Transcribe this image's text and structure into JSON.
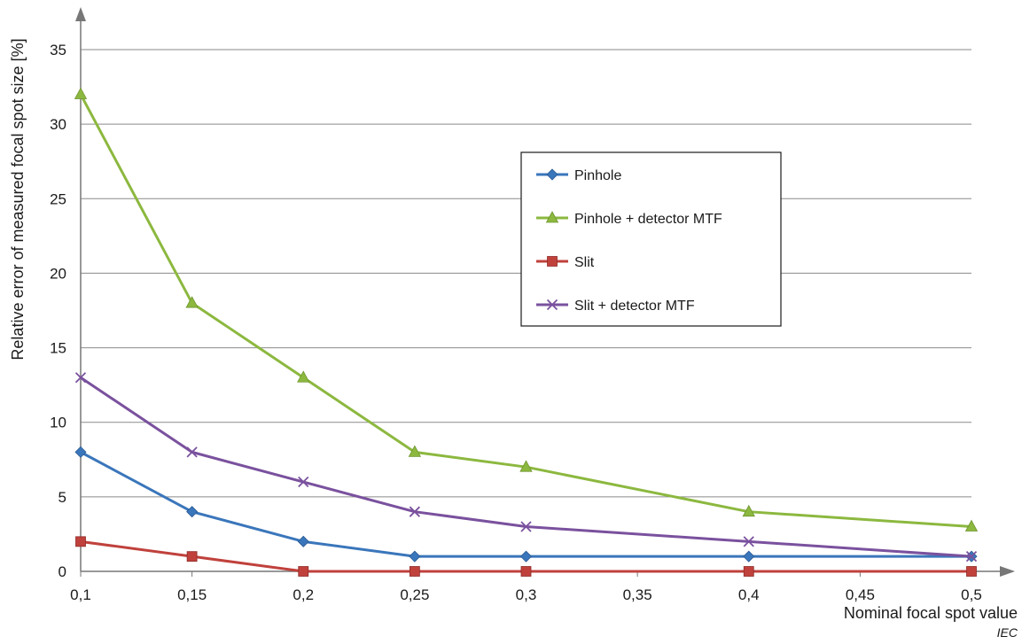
{
  "chart_data": {
    "type": "line",
    "title": "",
    "xlabel": "Nominal focal spot value",
    "ylabel": "Relative error of measured focal spot size [%]",
    "x": [
      0.1,
      0.15,
      0.2,
      0.25,
      0.3,
      0.4,
      0.5
    ],
    "x_ticks": [
      "0,1",
      "0,15",
      "0,2",
      "0,25",
      "0,3",
      "0,35",
      "0,4",
      "0,45",
      "0,5"
    ],
    "y_ticks": [
      "0",
      "5",
      "10",
      "15",
      "20",
      "25",
      "30",
      "35"
    ],
    "xlim": [
      0.1,
      0.5
    ],
    "ylim": [
      0,
      35
    ],
    "grid": "horizontal",
    "legend_position": "upper-right",
    "series": [
      {
        "name": "Pinhole",
        "color": "#3a76bb",
        "marker": "diamond",
        "values": [
          8,
          4,
          2,
          1,
          1,
          1,
          1
        ]
      },
      {
        "name": "Pinhole + detector MTF",
        "color": "#8cb83f",
        "marker": "triangle",
        "values": [
          32,
          18,
          13,
          8,
          7,
          4,
          3
        ]
      },
      {
        "name": "Slit",
        "color": "#c0413c",
        "marker": "square",
        "values": [
          2,
          1,
          0,
          0,
          0,
          0,
          0
        ]
      },
      {
        "name": "Slit + detector MTF",
        "color": "#7a519e",
        "marker": "cross",
        "values": [
          13,
          8,
          6,
          4,
          3,
          2,
          1
        ]
      }
    ]
  },
  "source_mark": "IEC"
}
